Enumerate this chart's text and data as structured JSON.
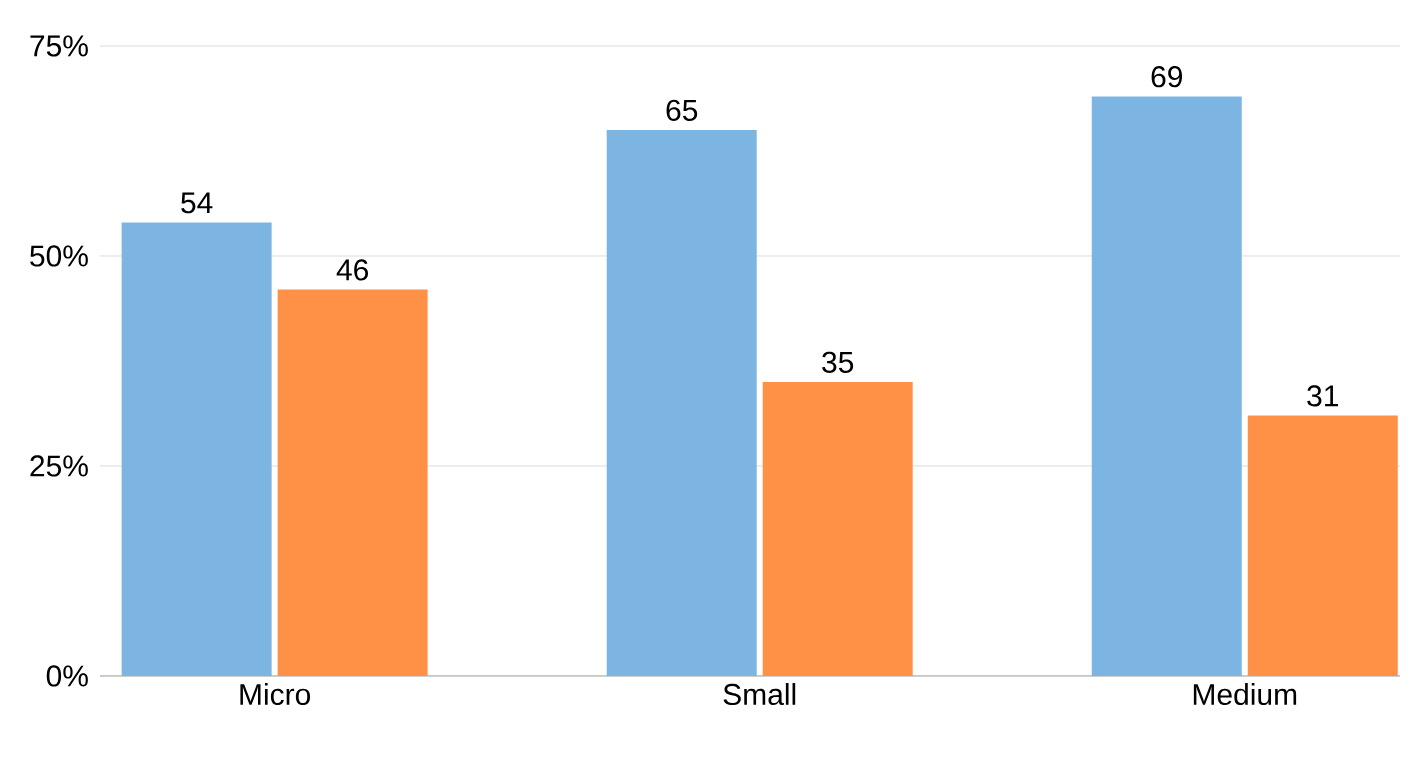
{
  "chart_data": {
    "type": "bar",
    "categories": [
      "Micro",
      "Small",
      "Medium"
    ],
    "series": [
      {
        "color": "#7cb5e1",
        "values": [
          54,
          65,
          69
        ]
      },
      {
        "color": "#ff9147",
        "values": [
          46,
          35,
          31
        ]
      }
    ],
    "ylim": [
      0,
      75
    ],
    "yticks": [
      {
        "value": 0,
        "label": "0%"
      },
      {
        "value": 25,
        "label": "25%"
      },
      {
        "value": 50,
        "label": "50%"
      },
      {
        "value": 75,
        "label": "75%"
      }
    ],
    "grid": "y",
    "data_labels": true
  }
}
